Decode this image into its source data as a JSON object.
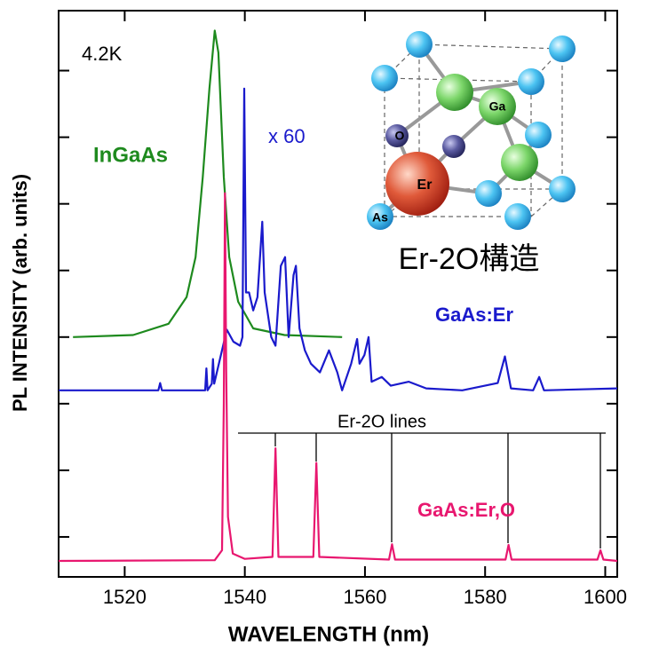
{
  "chart_data": {
    "type": "line",
    "xlabel": "WAVELENGTH  (nm)",
    "ylabel": "PL INTENSITY  (arb. units)",
    "xlim": [
      1509,
      1602
    ],
    "xticks": [
      1520,
      1540,
      1560,
      1580,
      1600
    ],
    "ylim": [
      -0.6,
      7.9
    ],
    "yticks": [
      0,
      1,
      2,
      3,
      4,
      5,
      6,
      7
    ],
    "annotations": [
      "4.2K",
      "x 60",
      "Er-2O lines"
    ],
    "series": [
      {
        "name": "InGaAs",
        "color": "#1e8a1e",
        "x": [
          1511.4,
          1521.4,
          1527.3,
          1530.3,
          1531.8,
          1533.0,
          1534.1,
          1535.0,
          1535.6,
          1536.5,
          1537.4,
          1538.9,
          1541.4,
          1546.6,
          1556.2
        ],
        "values": [
          3.0,
          3.03,
          3.2,
          3.6,
          4.2,
          5.4,
          6.73,
          7.6,
          7.27,
          5.4,
          4.2,
          3.53,
          3.13,
          3.03,
          3.0
        ]
      },
      {
        "name": "GaAs:Er",
        "color": "#1a1acc",
        "x": [
          1509,
          1525.6,
          1525.9,
          1526.2,
          1533.4,
          1533.6,
          1533.8,
          1534.5,
          1534.7,
          1534.9,
          1537.0,
          1538.1,
          1539.2,
          1539.6,
          1539.9,
          1540.2,
          1540.7,
          1541.4,
          1542.1,
          1542.9,
          1543.3,
          1544.4,
          1545.1,
          1546.0,
          1546.7,
          1547.3,
          1548.1,
          1548.5,
          1549.1,
          1550.0,
          1551.0,
          1552.5,
          1554.0,
          1555.4,
          1556.2,
          1557.7,
          1558.7,
          1559.1,
          1559.9,
          1560.6,
          1561.1,
          1562.8,
          1564.3,
          1567.3,
          1570.2,
          1576.2,
          1582.1,
          1583.3,
          1584.3,
          1588.0,
          1589.0,
          1589.8,
          1602
        ],
        "values": [
          2.2,
          2.2,
          2.31,
          2.2,
          2.2,
          2.53,
          2.2,
          2.3,
          2.67,
          2.3,
          3.11,
          2.93,
          2.87,
          3.0,
          6.73,
          3.67,
          3.67,
          3.4,
          3.6,
          4.73,
          3.67,
          3.0,
          2.87,
          4.07,
          4.2,
          3.0,
          3.93,
          4.07,
          3.13,
          2.8,
          2.6,
          2.47,
          2.8,
          2.47,
          2.2,
          2.6,
          2.97,
          2.6,
          2.73,
          3.0,
          2.33,
          2.4,
          2.27,
          2.33,
          2.23,
          2.2,
          2.31,
          2.71,
          2.23,
          2.2,
          2.4,
          2.2,
          2.23
        ]
      },
      {
        "name": "GaAs:Er,O",
        "color": "#e8176f",
        "x": [
          1509,
          1535.0,
          1536.2,
          1536.5,
          1536.7,
          1536.9,
          1537.2,
          1538.0,
          1540.0,
          1544.6,
          1545.1,
          1545.6,
          1551.4,
          1551.9,
          1552.4,
          1564.0,
          1564.5,
          1565.0,
          1583.4,
          1583.9,
          1584.4,
          1598.7,
          1599.2,
          1599.7,
          1602
        ],
        "values": [
          -0.36,
          -0.35,
          -0.2,
          2.0,
          5.16,
          2.5,
          0.3,
          -0.25,
          -0.33,
          -0.3,
          1.33,
          -0.3,
          -0.3,
          1.11,
          -0.3,
          -0.34,
          -0.11,
          -0.34,
          -0.34,
          -0.12,
          -0.34,
          -0.34,
          -0.2,
          -0.34,
          -0.36
        ]
      }
    ],
    "inset": {
      "title": "Er-2O構造",
      "atoms": [
        "Ga",
        "O",
        "Er",
        "As"
      ]
    }
  }
}
